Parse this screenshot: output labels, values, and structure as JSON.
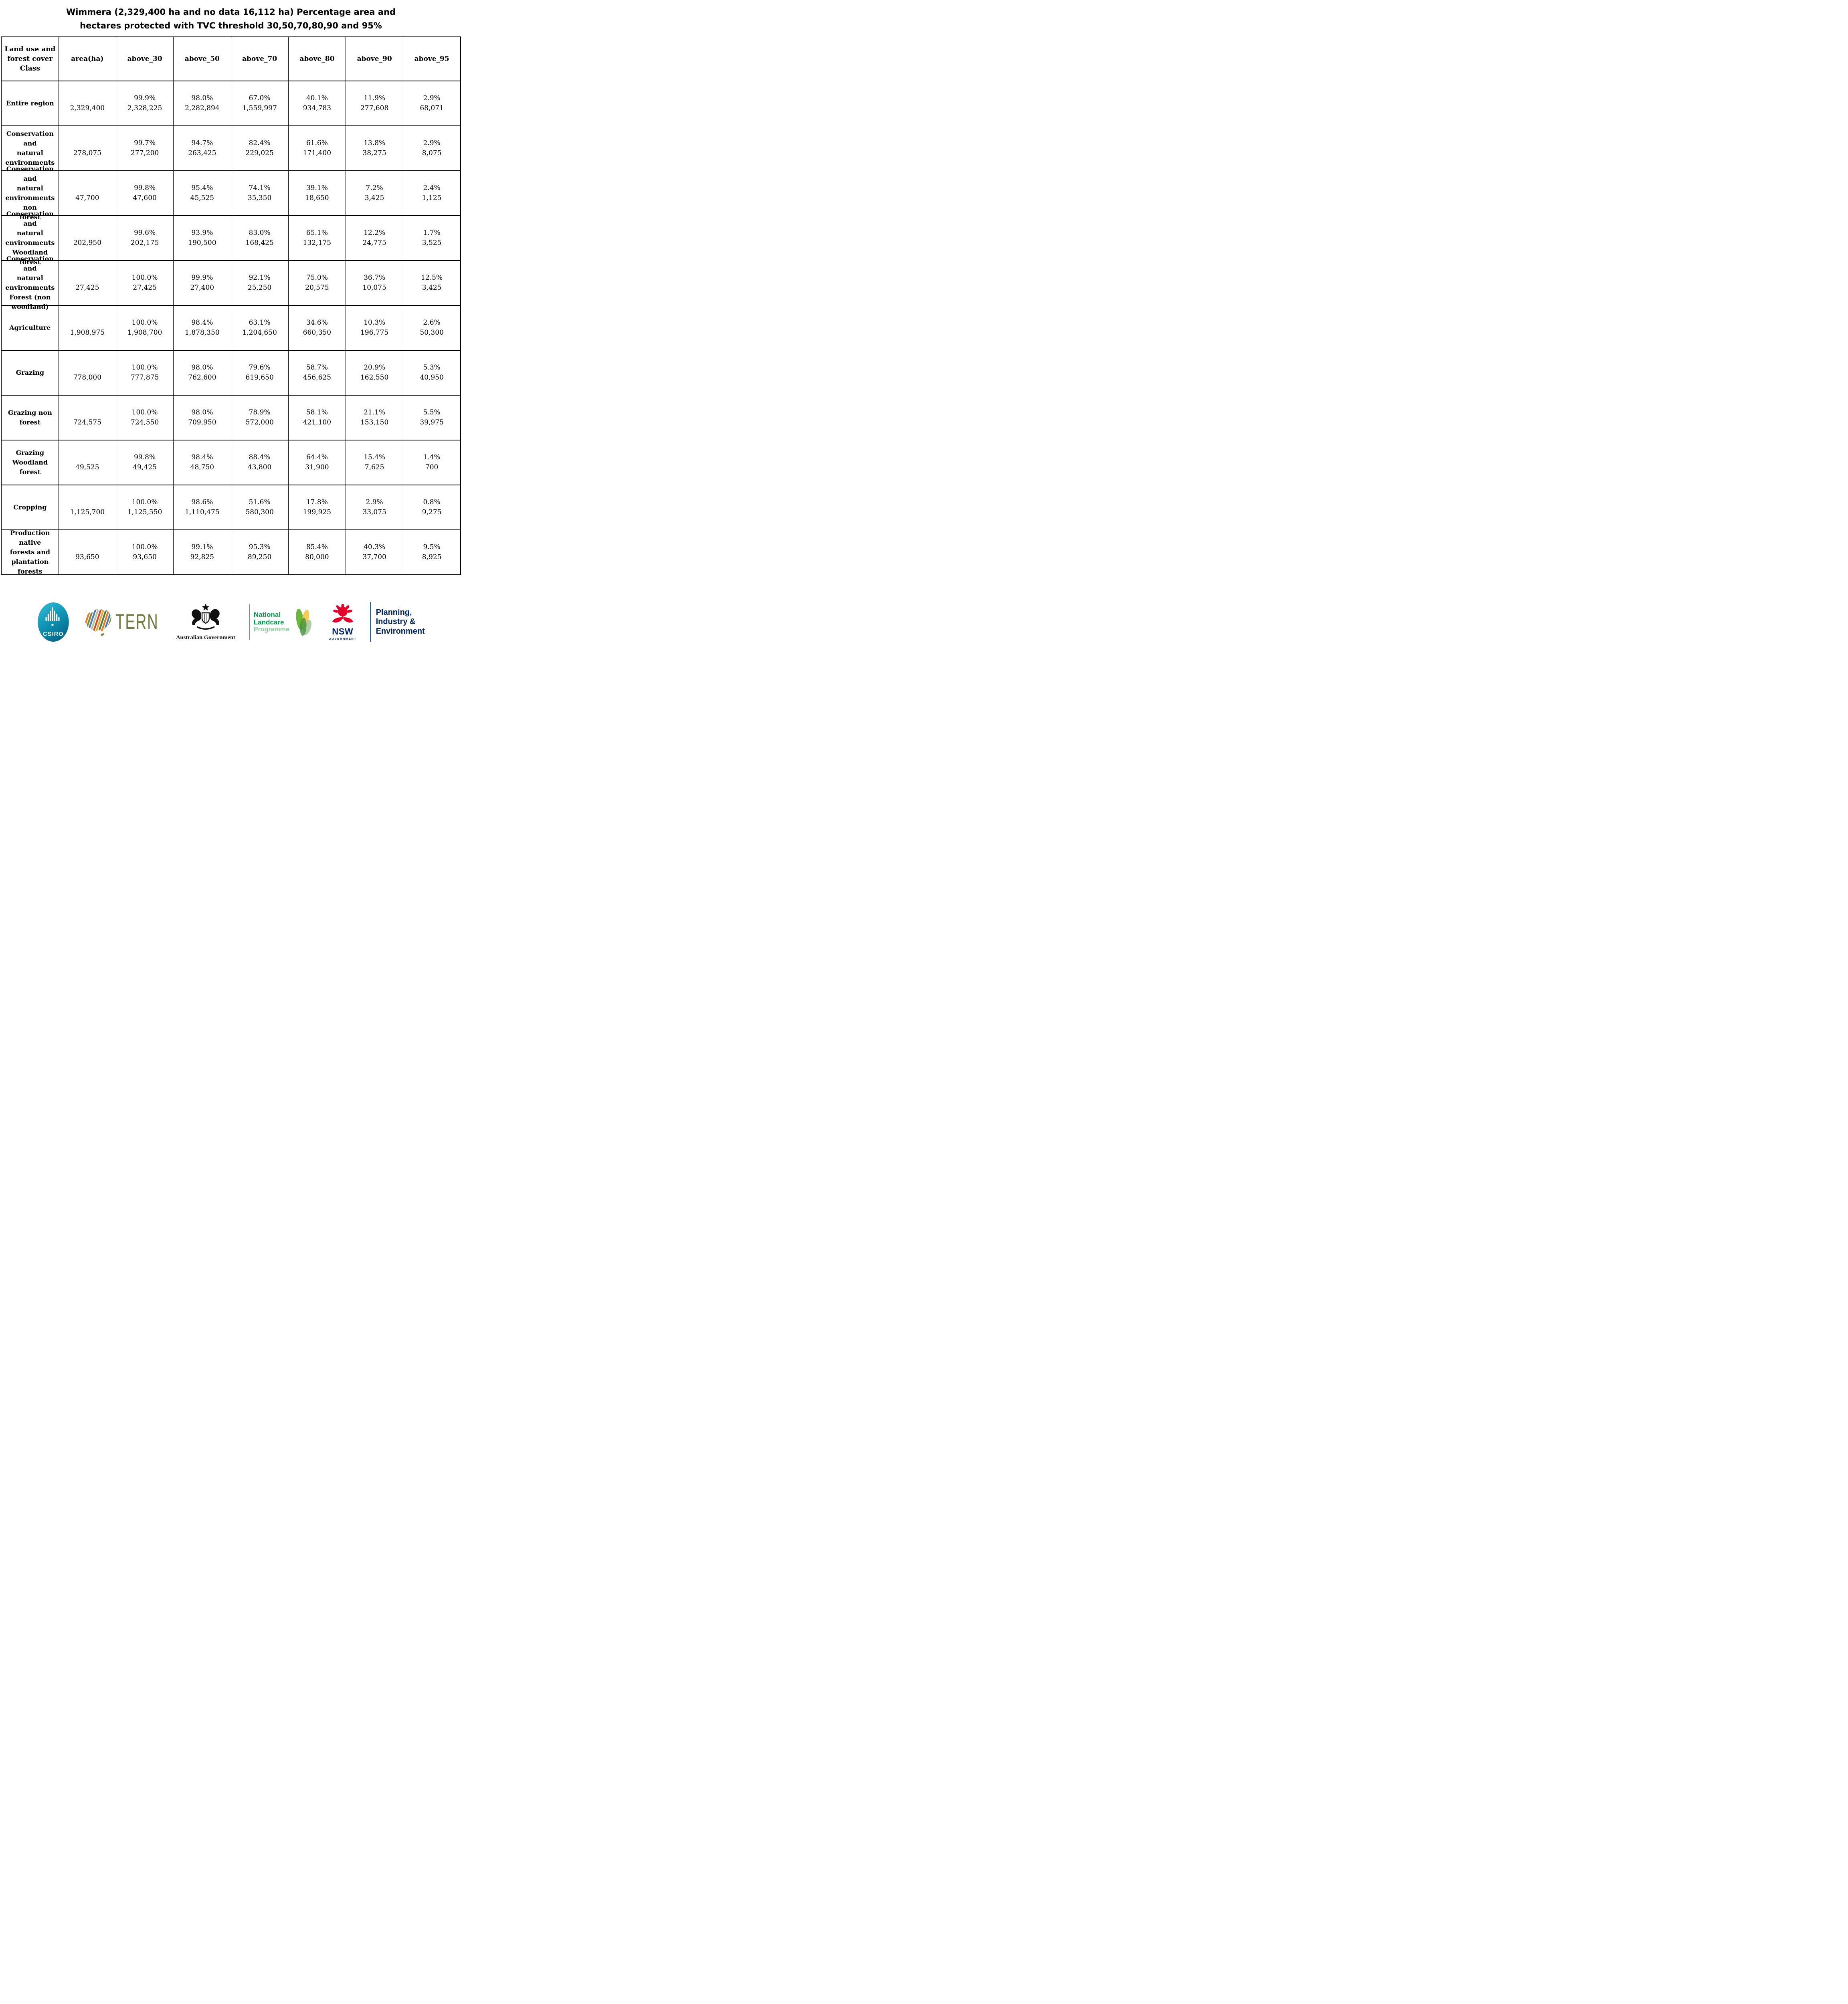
{
  "title": {
    "line1": "Wimmera (2,329,400 ha and no data 16,112 ha) Percentage area and",
    "line2": "hectares protected with TVC threshold 30,50,70,80,90 and 95%"
  },
  "table": {
    "columns": [
      "Land use and\nforest cover\nClass",
      "area(ha)",
      "above_30",
      "above_50",
      "above_70",
      "above_80",
      "above_90",
      "above_95"
    ],
    "rows": [
      {
        "label": "Entire region",
        "area": "2,329,400",
        "cells": [
          [
            "99.9%",
            "2,328,225"
          ],
          [
            "98.0%",
            "2,282,894"
          ],
          [
            "67.0%",
            "1,559,997"
          ],
          [
            "40.1%",
            "934,783"
          ],
          [
            "11.9%",
            "277,608"
          ],
          [
            "2.9%",
            "68,071"
          ]
        ]
      },
      {
        "label": "Conservation and\nnatural\nenvironments",
        "area": "278,075",
        "cells": [
          [
            "99.7%",
            "277,200"
          ],
          [
            "94.7%",
            "263,425"
          ],
          [
            "82.4%",
            "229,025"
          ],
          [
            "61.6%",
            "171,400"
          ],
          [
            "13.8%",
            "38,275"
          ],
          [
            "2.9%",
            "8,075"
          ]
        ]
      },
      {
        "label": "Conservation and\nnatural\nenvironments non\nforest",
        "area": "47,700",
        "cells": [
          [
            "99.8%",
            "47,600"
          ],
          [
            "95.4%",
            "45,525"
          ],
          [
            "74.1%",
            "35,350"
          ],
          [
            "39.1%",
            "18,650"
          ],
          [
            "7.2%",
            "3,425"
          ],
          [
            "2.4%",
            "1,125"
          ]
        ]
      },
      {
        "label": "Conservation and\nnatural\nenvironments\nWoodland forest",
        "area": "202,950",
        "cells": [
          [
            "99.6%",
            "202,175"
          ],
          [
            "93.9%",
            "190,500"
          ],
          [
            "83.0%",
            "168,425"
          ],
          [
            "65.1%",
            "132,175"
          ],
          [
            "12.2%",
            "24,775"
          ],
          [
            "1.7%",
            "3,525"
          ]
        ]
      },
      {
        "label": "Conservation and\nnatural\nenvironments\nForest (non\nwoodland)",
        "area": "27,425",
        "cells": [
          [
            "100.0%",
            "27,425"
          ],
          [
            "99.9%",
            "27,400"
          ],
          [
            "92.1%",
            "25,250"
          ],
          [
            "75.0%",
            "20,575"
          ],
          [
            "36.7%",
            "10,075"
          ],
          [
            "12.5%",
            "3,425"
          ]
        ]
      },
      {
        "label": "Agriculture",
        "area": "1,908,975",
        "cells": [
          [
            "100.0%",
            "1,908,700"
          ],
          [
            "98.4%",
            "1,878,350"
          ],
          [
            "63.1%",
            "1,204,650"
          ],
          [
            "34.6%",
            "660,350"
          ],
          [
            "10.3%",
            "196,775"
          ],
          [
            "2.6%",
            "50,300"
          ]
        ]
      },
      {
        "label": "Grazing",
        "area": "778,000",
        "cells": [
          [
            "100.0%",
            "777,875"
          ],
          [
            "98.0%",
            "762,600"
          ],
          [
            "79.6%",
            "619,650"
          ],
          [
            "58.7%",
            "456,625"
          ],
          [
            "20.9%",
            "162,550"
          ],
          [
            "5.3%",
            "40,950"
          ]
        ]
      },
      {
        "label": "Grazing non\nforest",
        "area": "724,575",
        "cells": [
          [
            "100.0%",
            "724,550"
          ],
          [
            "98.0%",
            "709,950"
          ],
          [
            "78.9%",
            "572,000"
          ],
          [
            "58.1%",
            "421,100"
          ],
          [
            "21.1%",
            "153,150"
          ],
          [
            "5.5%",
            "39,975"
          ]
        ]
      },
      {
        "label": "Grazing Woodland\nforest",
        "area": "49,525",
        "cells": [
          [
            "99.8%",
            "49,425"
          ],
          [
            "98.4%",
            "48,750"
          ],
          [
            "88.4%",
            "43,800"
          ],
          [
            "64.4%",
            "31,900"
          ],
          [
            "15.4%",
            "7,625"
          ],
          [
            "1.4%",
            "700"
          ]
        ]
      },
      {
        "label": "Cropping",
        "area": "1,125,700",
        "cells": [
          [
            "100.0%",
            "1,125,550"
          ],
          [
            "98.6%",
            "1,110,475"
          ],
          [
            "51.6%",
            "580,300"
          ],
          [
            "17.8%",
            "199,925"
          ],
          [
            "2.9%",
            "33,075"
          ],
          [
            "0.8%",
            "9,275"
          ]
        ]
      },
      {
        "label": "Production native\nforests and\nplantation\nforests",
        "area": "93,650",
        "cells": [
          [
            "100.0%",
            "93,650"
          ],
          [
            "99.1%",
            "92,825"
          ],
          [
            "95.3%",
            "89,250"
          ],
          [
            "85.4%",
            "80,000"
          ],
          [
            "40.3%",
            "37,700"
          ],
          [
            "9.5%",
            "8,925"
          ]
        ]
      }
    ]
  },
  "footer": {
    "csiro_label": "CSIRO",
    "tern_label": "TERN",
    "aus_gov_label": "Australian Government",
    "landcare_line1": "National",
    "landcare_line2": "Landcare",
    "landcare_line3": "Programme",
    "nsw_label": "NSW",
    "nsw_sub": "GOVERNMENT",
    "planning_line1": "Planning,",
    "planning_line2": "Industry &",
    "planning_line3": "Environment"
  },
  "colors": {
    "csiro-teal": "#18a7c9",
    "tern-olive": "#6d7c3e",
    "landcare-green": "#009e49",
    "landcare-light": "#8fcf9f",
    "nsw-red": "#e4002b",
    "nsw-navy": "#002664",
    "gov-black": "#111111",
    "divider-gray": "#8a8a8a"
  }
}
